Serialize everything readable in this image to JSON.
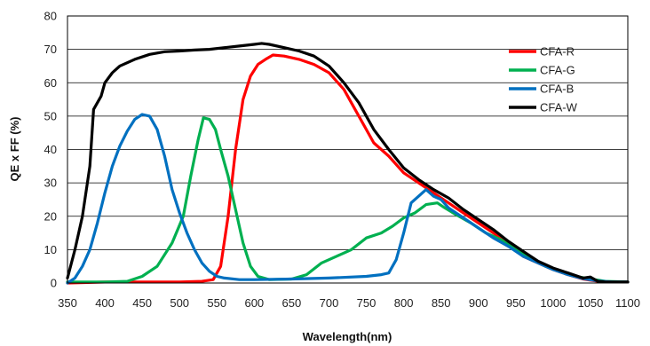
{
  "chart_data": {
    "type": "line",
    "title": "",
    "xlabel": "Wavelength(nm)",
    "ylabel": "QE x FF (%)",
    "xlim": [
      350,
      1100
    ],
    "ylim": [
      0,
      80
    ],
    "xticks": [
      350,
      400,
      450,
      500,
      550,
      600,
      650,
      700,
      750,
      800,
      850,
      900,
      950,
      1000,
      1050,
      1100
    ],
    "yticks": [
      0,
      10,
      20,
      30,
      40,
      50,
      60,
      70,
      80
    ],
    "grid": "horizontal",
    "legend_position": "top-right",
    "series": [
      {
        "name": "CFA-R",
        "color": "#ff0000",
        "points": [
          [
            350,
            0
          ],
          [
            400,
            0.3
          ],
          [
            450,
            0.3
          ],
          [
            500,
            0.3
          ],
          [
            530,
            0.5
          ],
          [
            545,
            1
          ],
          [
            555,
            5
          ],
          [
            565,
            20
          ],
          [
            575,
            40
          ],
          [
            585,
            55
          ],
          [
            595,
            62
          ],
          [
            605,
            65.5
          ],
          [
            615,
            67
          ],
          [
            625,
            68.3
          ],
          [
            640,
            68
          ],
          [
            660,
            67
          ],
          [
            680,
            65.5
          ],
          [
            700,
            63
          ],
          [
            720,
            58
          ],
          [
            740,
            50
          ],
          [
            760,
            42
          ],
          [
            780,
            38
          ],
          [
            800,
            33
          ],
          [
            820,
            30
          ],
          [
            840,
            27
          ],
          [
            860,
            24
          ],
          [
            880,
            21
          ],
          [
            900,
            18
          ],
          [
            920,
            15
          ],
          [
            940,
            12
          ],
          [
            960,
            8
          ],
          [
            980,
            6
          ],
          [
            1000,
            4
          ],
          [
            1020,
            2.5
          ],
          [
            1040,
            1.2
          ],
          [
            1060,
            0.5
          ],
          [
            1080,
            0.3
          ],
          [
            1100,
            0.3
          ]
        ]
      },
      {
        "name": "CFA-G",
        "color": "#00b050",
        "points": [
          [
            350,
            0.3
          ],
          [
            400,
            0.3
          ],
          [
            430,
            0.5
          ],
          [
            450,
            2
          ],
          [
            470,
            5
          ],
          [
            490,
            12
          ],
          [
            505,
            20
          ],
          [
            515,
            32
          ],
          [
            525,
            43
          ],
          [
            532,
            49.5
          ],
          [
            540,
            49
          ],
          [
            548,
            46
          ],
          [
            555,
            40
          ],
          [
            565,
            32
          ],
          [
            575,
            22
          ],
          [
            585,
            12
          ],
          [
            595,
            5
          ],
          [
            605,
            2
          ],
          [
            620,
            1
          ],
          [
            650,
            1.2
          ],
          [
            670,
            2.5
          ],
          [
            690,
            6
          ],
          [
            710,
            8
          ],
          [
            730,
            10
          ],
          [
            750,
            13.5
          ],
          [
            770,
            15
          ],
          [
            785,
            17
          ],
          [
            800,
            19.5
          ],
          [
            815,
            21
          ],
          [
            830,
            23.5
          ],
          [
            845,
            24
          ],
          [
            855,
            22.5
          ],
          [
            870,
            20.5
          ],
          [
            890,
            18
          ],
          [
            910,
            15
          ],
          [
            930,
            13
          ],
          [
            950,
            10
          ],
          [
            970,
            7.5
          ],
          [
            990,
            5
          ],
          [
            1010,
            3.5
          ],
          [
            1030,
            2
          ],
          [
            1050,
            1.2
          ],
          [
            1070,
            0.5
          ],
          [
            1100,
            0.3
          ]
        ]
      },
      {
        "name": "CFA-B",
        "color": "#0070c0",
        "points": [
          [
            350,
            0
          ],
          [
            360,
            1.5
          ],
          [
            370,
            5
          ],
          [
            380,
            10
          ],
          [
            390,
            18
          ],
          [
            400,
            27
          ],
          [
            410,
            35
          ],
          [
            420,
            41
          ],
          [
            430,
            45.5
          ],
          [
            440,
            49
          ],
          [
            450,
            50.5
          ],
          [
            460,
            50
          ],
          [
            470,
            46
          ],
          [
            480,
            38
          ],
          [
            490,
            28
          ],
          [
            500,
            21
          ],
          [
            510,
            15
          ],
          [
            520,
            10
          ],
          [
            530,
            6
          ],
          [
            540,
            3.5
          ],
          [
            550,
            2
          ],
          [
            560,
            1.5
          ],
          [
            580,
            1
          ],
          [
            600,
            1
          ],
          [
            650,
            1.2
          ],
          [
            700,
            1.5
          ],
          [
            750,
            2
          ],
          [
            770,
            2.5
          ],
          [
            780,
            3
          ],
          [
            790,
            7
          ],
          [
            800,
            15
          ],
          [
            810,
            24
          ],
          [
            820,
            26
          ],
          [
            830,
            28
          ],
          [
            840,
            26
          ],
          [
            850,
            25
          ],
          [
            860,
            22.5
          ],
          [
            880,
            19.5
          ],
          [
            900,
            16.5
          ],
          [
            920,
            13.5
          ],
          [
            940,
            11
          ],
          [
            960,
            8
          ],
          [
            980,
            6
          ],
          [
            1000,
            4
          ],
          [
            1020,
            2.5
          ],
          [
            1040,
            1.3
          ],
          [
            1060,
            0.6
          ],
          [
            1080,
            0.3
          ],
          [
            1100,
            0.3
          ]
        ]
      },
      {
        "name": "CFA-W",
        "color": "#000000",
        "points": [
          [
            350,
            1.5
          ],
          [
            360,
            10
          ],
          [
            370,
            20
          ],
          [
            380,
            35
          ],
          [
            385,
            52
          ],
          [
            395,
            56
          ],
          [
            400,
            60
          ],
          [
            410,
            63
          ],
          [
            420,
            65
          ],
          [
            440,
            67
          ],
          [
            460,
            68.5
          ],
          [
            480,
            69.3
          ],
          [
            500,
            69.5
          ],
          [
            520,
            69.8
          ],
          [
            540,
            70
          ],
          [
            560,
            70.5
          ],
          [
            580,
            71
          ],
          [
            600,
            71.5
          ],
          [
            610,
            71.8
          ],
          [
            620,
            71.5
          ],
          [
            640,
            70.5
          ],
          [
            660,
            69.5
          ],
          [
            680,
            68
          ],
          [
            700,
            65
          ],
          [
            720,
            60
          ],
          [
            740,
            54
          ],
          [
            760,
            46
          ],
          [
            780,
            40
          ],
          [
            800,
            34.5
          ],
          [
            820,
            31
          ],
          [
            840,
            28
          ],
          [
            860,
            25.5
          ],
          [
            880,
            22
          ],
          [
            900,
            19
          ],
          [
            920,
            16
          ],
          [
            940,
            12.5
          ],
          [
            960,
            9.5
          ],
          [
            980,
            6.5
          ],
          [
            1000,
            4.5
          ],
          [
            1020,
            3
          ],
          [
            1040,
            1.5
          ],
          [
            1050,
            1.8
          ],
          [
            1060,
            0.5
          ],
          [
            1070,
            0.3
          ],
          [
            1100,
            0.3
          ]
        ]
      }
    ]
  }
}
